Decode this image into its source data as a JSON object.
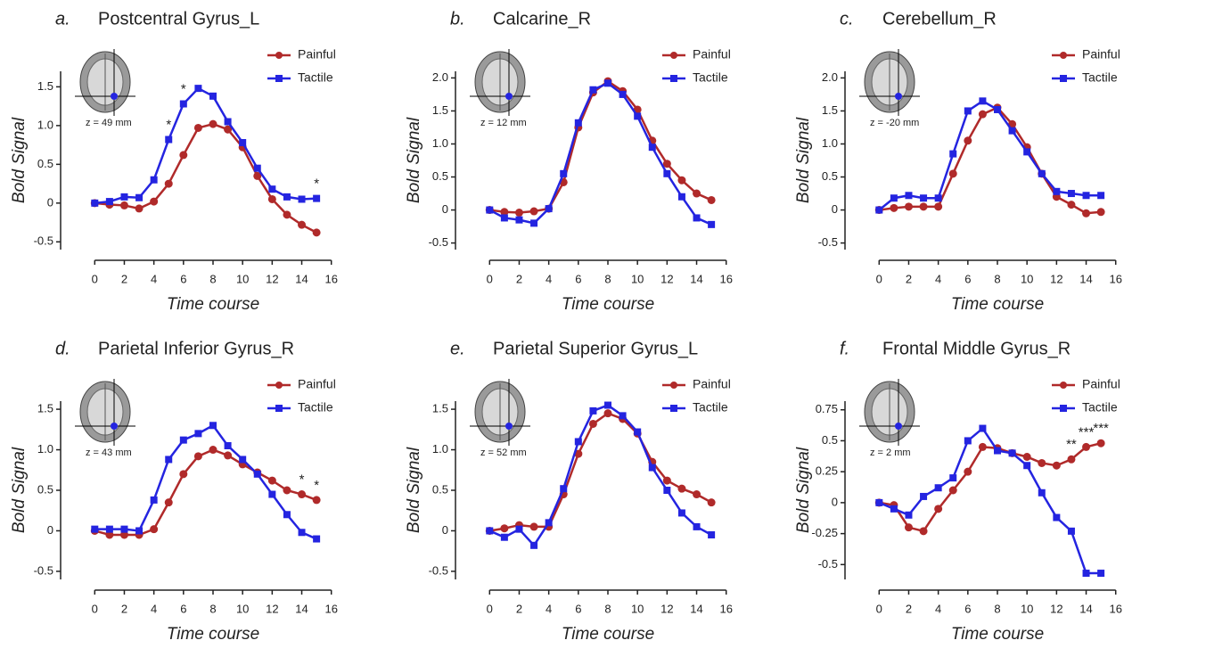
{
  "chart_data": [
    {
      "type": "line",
      "label": "a.",
      "title": "Postcentral Gyrus_L",
      "inset_label": "z = 49 mm",
      "xlabel": "Time course",
      "ylabel": "Bold Signal",
      "legend": "upper right",
      "x": [
        0,
        1,
        2,
        3,
        4,
        5,
        6,
        7,
        8,
        9,
        10,
        11,
        12,
        13,
        14,
        15
      ],
      "xlim": [
        -0.5,
        16.5
      ],
      "xticks": [
        0,
        2,
        4,
        6,
        8,
        10,
        12,
        14,
        16
      ],
      "ylim": [
        -0.6,
        1.7
      ],
      "yticks": [
        -0.5,
        0,
        0.5,
        {
          "value": 1,
          "label": "1.0"
        },
        1.5
      ],
      "series": [
        {
          "name": "Painful",
          "color": "#b02a2a",
          "marker": "circle",
          "values": [
            0,
            -0.02,
            -0.03,
            -0.07,
            0.02,
            0.25,
            0.62,
            0.97,
            1.02,
            0.95,
            0.72,
            0.35,
            0.05,
            -0.15,
            -0.28,
            -0.38
          ]
        },
        {
          "name": "Tactile",
          "color": "#2424e0",
          "marker": "square",
          "values": [
            0,
            0.02,
            0.08,
            0.07,
            0.3,
            0.82,
            1.28,
            1.48,
            1.38,
            1.05,
            0.78,
            0.45,
            0.18,
            0.08,
            0.05,
            0.06
          ]
        }
      ],
      "annotations": [
        {
          "x": 5,
          "text": "*"
        },
        {
          "x": 6,
          "text": "*"
        },
        {
          "x": 15,
          "text": "*"
        }
      ]
    },
    {
      "type": "line",
      "label": "b.",
      "title": "Calcarine_R",
      "inset_label": "z = 12 mm",
      "xlabel": "Time course",
      "ylabel": "Bold Signal",
      "legend": "upper right",
      "x": [
        0,
        1,
        2,
        3,
        4,
        5,
        6,
        7,
        8,
        9,
        10,
        11,
        12,
        13,
        14,
        15
      ],
      "xlim": [
        -0.5,
        16.5
      ],
      "xticks": [
        0,
        2,
        4,
        6,
        8,
        10,
        12,
        14,
        16
      ],
      "ylim": [
        -0.6,
        2.1
      ],
      "yticks": [
        -0.5,
        0,
        0.5,
        {
          "value": 1,
          "label": "1.0"
        },
        1.5,
        {
          "value": 2,
          "label": "2.0"
        }
      ],
      "series": [
        {
          "name": "Painful",
          "color": "#b02a2a",
          "marker": "circle",
          "values": [
            0,
            -0.03,
            -0.04,
            -0.02,
            0.02,
            0.42,
            1.25,
            1.78,
            1.95,
            1.8,
            1.52,
            1.05,
            0.7,
            0.45,
            0.25,
            0.15
          ]
        },
        {
          "name": "Tactile",
          "color": "#2424e0",
          "marker": "square",
          "values": [
            0,
            -0.12,
            -0.15,
            -0.2,
            0.02,
            0.55,
            1.32,
            1.82,
            1.92,
            1.75,
            1.42,
            0.95,
            0.55,
            0.2,
            -0.12,
            -0.22
          ]
        }
      ],
      "annotations": []
    },
    {
      "type": "line",
      "label": "c.",
      "title": "Cerebellum_R",
      "inset_label": "z = -20 mm",
      "xlabel": "Time course",
      "ylabel": "Bold Signal",
      "legend": "upper right",
      "x": [
        0,
        1,
        2,
        3,
        4,
        5,
        6,
        7,
        8,
        9,
        10,
        11,
        12,
        13,
        14,
        15
      ],
      "xlim": [
        -0.5,
        16.5
      ],
      "xticks": [
        0,
        2,
        4,
        6,
        8,
        10,
        12,
        14,
        16
      ],
      "ylim": [
        -0.6,
        2.1
      ],
      "yticks": [
        -0.5,
        0,
        0.5,
        {
          "value": 1,
          "label": "1.0"
        },
        1.5,
        {
          "value": 2,
          "label": "2.0"
        }
      ],
      "series": [
        {
          "name": "Painful",
          "color": "#b02a2a",
          "marker": "circle",
          "values": [
            0,
            0.03,
            0.05,
            0.05,
            0.05,
            0.55,
            1.05,
            1.45,
            1.55,
            1.3,
            0.95,
            0.55,
            0.2,
            0.08,
            -0.05,
            -0.03
          ]
        },
        {
          "name": "Tactile",
          "color": "#2424e0",
          "marker": "square",
          "values": [
            0,
            0.18,
            0.22,
            0.18,
            0.18,
            0.85,
            1.5,
            1.65,
            1.52,
            1.2,
            0.88,
            0.55,
            0.28,
            0.25,
            0.22,
            0.22
          ]
        }
      ],
      "annotations": []
    },
    {
      "type": "line",
      "label": "d.",
      "title": "Parietal Inferior Gyrus_R",
      "inset_label": "z = 43 mm",
      "xlabel": "Time course",
      "ylabel": "Bold Signal",
      "legend": "upper right",
      "x": [
        0,
        1,
        2,
        3,
        4,
        5,
        6,
        7,
        8,
        9,
        10,
        11,
        12,
        13,
        14,
        15
      ],
      "xlim": [
        -0.5,
        16.5
      ],
      "xticks": [
        0,
        2,
        4,
        6,
        8,
        10,
        12,
        14,
        16
      ],
      "ylim": [
        -0.6,
        1.6
      ],
      "yticks": [
        -0.5,
        0,
        0.5,
        {
          "value": 1,
          "label": "1.0"
        },
        1.5
      ],
      "series": [
        {
          "name": "Painful",
          "color": "#b02a2a",
          "marker": "circle",
          "values": [
            0,
            -0.05,
            -0.05,
            -0.05,
            0.02,
            0.35,
            0.7,
            0.92,
            1.0,
            0.93,
            0.82,
            0.72,
            0.62,
            0.5,
            0.45,
            0.38
          ]
        },
        {
          "name": "Tactile",
          "color": "#2424e0",
          "marker": "square",
          "values": [
            0.02,
            0.02,
            0.02,
            0,
            0.38,
            0.88,
            1.12,
            1.2,
            1.3,
            1.05,
            0.88,
            0.7,
            0.45,
            0.2,
            -0.02,
            -0.1
          ]
        }
      ],
      "annotations": [
        {
          "x": 14,
          "text": "*"
        },
        {
          "x": 15,
          "text": "*"
        }
      ]
    },
    {
      "type": "line",
      "label": "e.",
      "title": "Parietal Superior Gyrus_L",
      "inset_label": "z = 52 mm",
      "xlabel": "Time course",
      "ylabel": "Bold Signal",
      "legend": "upper right",
      "x": [
        0,
        1,
        2,
        3,
        4,
        5,
        6,
        7,
        8,
        9,
        10,
        11,
        12,
        13,
        14,
        15
      ],
      "xlim": [
        -0.5,
        16.5
      ],
      "xticks": [
        0,
        2,
        4,
        6,
        8,
        10,
        12,
        14,
        16
      ],
      "ylim": [
        -0.6,
        1.6
      ],
      "yticks": [
        -0.5,
        0,
        0.5,
        {
          "value": 1,
          "label": "1.0"
        },
        1.5
      ],
      "series": [
        {
          "name": "Painful",
          "color": "#b02a2a",
          "marker": "circle",
          "values": [
            0,
            0.03,
            0.07,
            0.05,
            0.05,
            0.45,
            0.95,
            1.32,
            1.45,
            1.38,
            1.2,
            0.85,
            0.62,
            0.52,
            0.45,
            0.35
          ]
        },
        {
          "name": "Tactile",
          "color": "#2424e0",
          "marker": "square",
          "values": [
            0,
            -0.08,
            0.02,
            -0.18,
            0.1,
            0.52,
            1.1,
            1.48,
            1.55,
            1.42,
            1.22,
            0.78,
            0.5,
            0.22,
            0.05,
            -0.05
          ]
        }
      ],
      "annotations": []
    },
    {
      "type": "line",
      "label": "f.",
      "title": "Frontal Middle Gyrus_R",
      "inset_label": "z = 2 mm",
      "xlabel": "Time course",
      "ylabel": "Bold Signal",
      "legend": "upper right",
      "x": [
        0,
        1,
        2,
        3,
        4,
        5,
        6,
        7,
        8,
        9,
        10,
        11,
        12,
        13,
        14,
        15
      ],
      "xlim": [
        -0.5,
        16.5
      ],
      "xticks": [
        0,
        2,
        4,
        6,
        8,
        10,
        12,
        14,
        16
      ],
      "ylim": [
        -0.62,
        0.82
      ],
      "yticks": [
        -0.5,
        -0.25,
        0,
        0.25,
        0.5,
        0.75
      ],
      "series": [
        {
          "name": "Painful",
          "color": "#b02a2a",
          "marker": "circle",
          "values": [
            0,
            -0.02,
            -0.2,
            -0.23,
            -0.05,
            0.1,
            0.25,
            0.45,
            0.44,
            0.4,
            0.37,
            0.32,
            0.3,
            0.35,
            0.45,
            0.48
          ]
        },
        {
          "name": "Tactile",
          "color": "#2424e0",
          "marker": "square",
          "values": [
            0,
            -0.05,
            -0.1,
            0.05,
            0.12,
            0.2,
            0.5,
            0.6,
            0.42,
            0.4,
            0.3,
            0.08,
            -0.12,
            -0.23,
            -0.57,
            -0.57
          ]
        }
      ],
      "annotations": [
        {
          "x": 13,
          "text": "**"
        },
        {
          "x": 14,
          "text": "***"
        },
        {
          "x": 15,
          "text": "***"
        }
      ]
    }
  ]
}
